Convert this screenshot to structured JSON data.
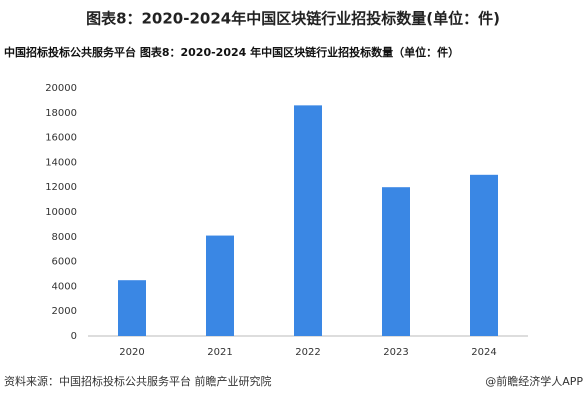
{
  "chart_data": {
    "type": "bar",
    "title": "图表8：2020-2024年中国区块链行业招投标数量(单位：件)",
    "subtitle": "中国招标投标公共服务平台  图表8：2020-2024 年中国区块链行业招投标数量（单位：件）",
    "categories": [
      "2020",
      "2021",
      "2022",
      "2023",
      "2024"
    ],
    "values": [
      4500,
      8100,
      18600,
      12000,
      13000
    ],
    "color": "#3a87e4",
    "ylim": [
      0,
      20000
    ],
    "yticks": [
      0,
      2000,
      4000,
      6000,
      8000,
      10000,
      12000,
      14000,
      16000,
      18000,
      20000
    ],
    "grid": false,
    "source": "资料来源：中国招标投标公共服务平台 前瞻产业研究院",
    "credit": "@前瞻经济学人APP"
  }
}
